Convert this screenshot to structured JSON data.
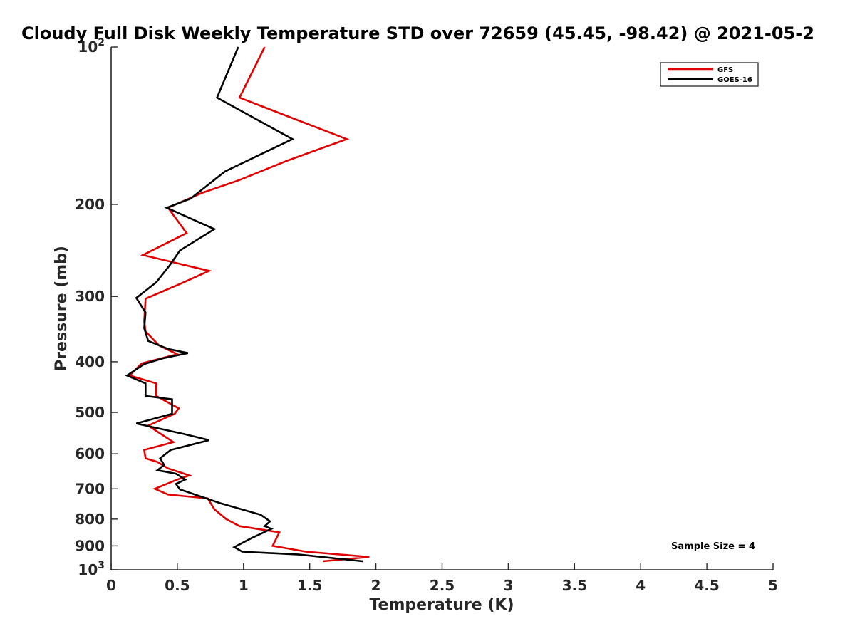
{
  "chart_data": {
    "type": "line",
    "title": "Cloudy Full Disk Weekly Temperature STD over 72659 (45.45, -98.42) @ 2021-05-2",
    "xlabel": "Temperature (K)",
    "ylabel": "Pressure (mb)",
    "xlim": [
      0,
      5
    ],
    "ylim": [
      100,
      1000
    ],
    "y_scale": "log",
    "y_direction": "reversed",
    "x_ticks": [
      "0",
      "0.5",
      "1",
      "1.5",
      "2",
      "2.5",
      "3",
      "3.5",
      "4",
      "4.5",
      "5"
    ],
    "x_tick_values": [
      0,
      0.5,
      1,
      1.5,
      2,
      2.5,
      3,
      3.5,
      4,
      4.5,
      5
    ],
    "y_ticks": [
      {
        "value": 100,
        "base": "10",
        "exp": "2"
      },
      {
        "value": 200,
        "label": "200"
      },
      {
        "value": 300,
        "label": "300"
      },
      {
        "value": 400,
        "label": "400"
      },
      {
        "value": 500,
        "label": "500"
      },
      {
        "value": 600,
        "label": "600"
      },
      {
        "value": 700,
        "label": "700"
      },
      {
        "value": 800,
        "label": "800"
      },
      {
        "value": 900,
        "label": "900"
      },
      {
        "value": 1000,
        "base": "10",
        "exp": "3"
      }
    ],
    "legend_position": "top-right",
    "grid": false,
    "annotation": "Sample Size = 4",
    "series": [
      {
        "name": "GFS",
        "color": "#e00000",
        "points": [
          [
            1.16,
            100
          ],
          [
            0.97,
            125
          ],
          [
            1.78,
            150
          ],
          [
            1.33,
            165
          ],
          [
            0.96,
            180
          ],
          [
            0.69,
            190
          ],
          [
            0.43,
            203
          ],
          [
            0.57,
            227
          ],
          [
            0.24,
            250
          ],
          [
            0.74,
            268
          ],
          [
            0.52,
            284
          ],
          [
            0.26,
            303
          ],
          [
            0.25,
            335
          ],
          [
            0.26,
            350
          ],
          [
            0.36,
            372
          ],
          [
            0.5,
            387
          ],
          [
            0.23,
            403
          ],
          [
            0.14,
            425
          ],
          [
            0.34,
            440
          ],
          [
            0.34,
            465
          ],
          [
            0.51,
            491
          ],
          [
            0.48,
            503
          ],
          [
            0.28,
            530
          ],
          [
            0.47,
            570
          ],
          [
            0.25,
            590
          ],
          [
            0.26,
            612
          ],
          [
            0.35,
            622
          ],
          [
            0.43,
            640
          ],
          [
            0.59,
            660
          ],
          [
            0.5,
            672
          ],
          [
            0.33,
            700
          ],
          [
            0.43,
            718
          ],
          [
            0.73,
            730
          ],
          [
            0.78,
            766
          ],
          [
            0.87,
            800
          ],
          [
            0.97,
            825
          ],
          [
            1.27,
            848
          ],
          [
            1.22,
            900
          ],
          [
            1.47,
            923
          ],
          [
            1.95,
            945
          ],
          [
            1.6,
            963
          ]
        ]
      },
      {
        "name": "GOES-16",
        "color": "#000000",
        "points": [
          [
            0.96,
            100
          ],
          [
            0.8,
            125
          ],
          [
            1.37,
            150
          ],
          [
            0.86,
            173
          ],
          [
            0.6,
            195
          ],
          [
            0.42,
            203
          ],
          [
            0.78,
            223
          ],
          [
            0.52,
            245
          ],
          [
            0.44,
            262
          ],
          [
            0.34,
            282
          ],
          [
            0.19,
            302
          ],
          [
            0.26,
            322
          ],
          [
            0.25,
            345
          ],
          [
            0.28,
            365
          ],
          [
            0.43,
            378
          ],
          [
            0.58,
            385
          ],
          [
            0.39,
            394
          ],
          [
            0.25,
            404
          ],
          [
            0.12,
            425
          ],
          [
            0.26,
            440
          ],
          [
            0.26,
            465
          ],
          [
            0.46,
            472
          ],
          [
            0.46,
            503
          ],
          [
            0.19,
            525
          ],
          [
            0.55,
            550
          ],
          [
            0.74,
            565
          ],
          [
            0.45,
            590
          ],
          [
            0.37,
            612
          ],
          [
            0.4,
            630
          ],
          [
            0.35,
            645
          ],
          [
            0.49,
            655
          ],
          [
            0.56,
            672
          ],
          [
            0.49,
            685
          ],
          [
            0.52,
            702
          ],
          [
            0.82,
            745
          ],
          [
            1.13,
            785
          ],
          [
            1.2,
            808
          ],
          [
            1.16,
            825
          ],
          [
            1.21,
            835
          ],
          [
            1.06,
            870
          ],
          [
            0.93,
            905
          ],
          [
            0.99,
            923
          ],
          [
            1.42,
            935
          ],
          [
            1.9,
            963
          ]
        ]
      }
    ]
  }
}
